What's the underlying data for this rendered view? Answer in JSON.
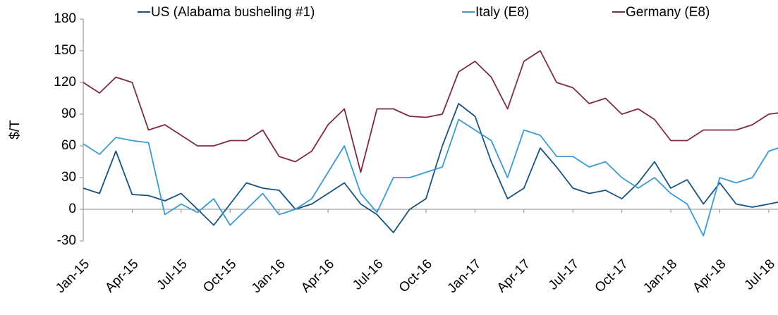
{
  "chart_data": {
    "type": "line",
    "y_label": "$/T",
    "categories": [
      "Jan-15",
      null,
      null,
      "Apr-15",
      null,
      null,
      "Jul-15",
      null,
      null,
      "Oct-15",
      null,
      null,
      "Jan-16",
      null,
      null,
      "Apr-16",
      null,
      null,
      "Jul-16",
      null,
      null,
      "Oct-16",
      null,
      null,
      "Jan-17",
      null,
      null,
      "Apr-17",
      null,
      null,
      "Jul-17",
      null,
      null,
      "Oct-17",
      null,
      null,
      "Jan-18",
      null,
      null,
      "Apr-18",
      null,
      null,
      "Jul-18",
      null
    ],
    "series": [
      {
        "name": "US (Alabama busheling #1)",
        "color": "#175381",
        "values": [
          20,
          15,
          55,
          14,
          13,
          8,
          15,
          0,
          -15,
          5,
          25,
          20,
          18,
          0,
          5,
          15,
          25,
          5,
          -5,
          -22,
          0,
          10,
          60,
          100,
          88,
          45,
          10,
          20,
          58,
          40,
          20,
          15,
          18,
          10,
          25,
          45,
          20,
          28,
          5,
          25,
          5,
          2,
          5,
          8
        ]
      },
      {
        "name": "Italy (E8)",
        "color": "#3a9ad4",
        "values": [
          62,
          52,
          68,
          65,
          63,
          -5,
          5,
          -3,
          10,
          -15,
          0,
          15,
          -5,
          0,
          10,
          35,
          60,
          15,
          -3,
          30,
          30,
          35,
          40,
          85,
          75,
          65,
          30,
          75,
          70,
          50,
          50,
          40,
          45,
          30,
          20,
          30,
          15,
          5,
          -25,
          30,
          25,
          30,
          55,
          60
        ]
      },
      {
        "name": "Germany (E8)",
        "color": "#7d2a48",
        "values": [
          120,
          110,
          125,
          120,
          75,
          80,
          70,
          60,
          60,
          65,
          65,
          75,
          50,
          45,
          55,
          80,
          95,
          35,
          95,
          95,
          88,
          87,
          90,
          130,
          140,
          125,
          95,
          140,
          150,
          120,
          115,
          100,
          105,
          90,
          95,
          85,
          65,
          65,
          75,
          75,
          75,
          80,
          90,
          92
        ]
      }
    ],
    "ylim": [
      -30,
      180
    ],
    "yticks": [
      -30,
      0,
      30,
      60,
      90,
      120,
      150,
      180
    ]
  }
}
